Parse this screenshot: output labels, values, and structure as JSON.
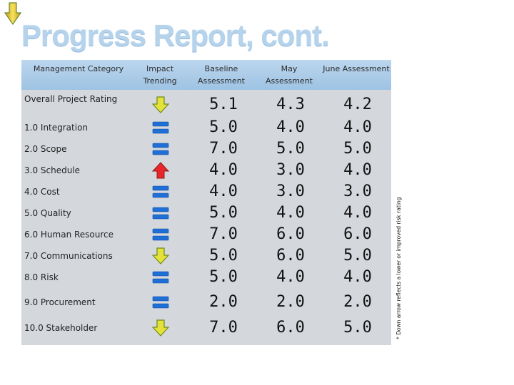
{
  "title": "Progress Report, cont.",
  "headers": {
    "category": "Management Category",
    "trending": "Impact Trending",
    "baseline": "Baseline Assessment",
    "may": "May Assessment",
    "june": "June Assessment"
  },
  "rows": [
    {
      "label": "Overall Project Rating",
      "trend": "down-arrow-icon",
      "baseline": "5.1",
      "may": "4.3",
      "june": "4.2"
    },
    {
      "label": "1.0 Integration",
      "trend": "equal-icon",
      "baseline": "5.0",
      "may": "4.0",
      "june": "4.0"
    },
    {
      "label": "2.0 Scope",
      "trend": "equal-icon",
      "baseline": "7.0",
      "may": "5.0",
      "june": "5.0"
    },
    {
      "label": "3.0 Schedule",
      "trend": "up-arrow-icon",
      "baseline": "4.0",
      "may": "3.0",
      "june": "4.0"
    },
    {
      "label": "4.0 Cost",
      "trend": "equal-icon",
      "baseline": "4.0",
      "may": "3.0",
      "june": "3.0"
    },
    {
      "label": "5.0 Quality",
      "trend": "equal-icon",
      "baseline": "5.0",
      "may": "4.0",
      "june": "4.0"
    },
    {
      "label": "6.0 Human Resource",
      "trend": "equal-icon",
      "baseline": "7.0",
      "may": "6.0",
      "june": "6.0"
    },
    {
      "label": "7.0 Communications",
      "trend": "down-arrow-icon",
      "baseline": "5.0",
      "may": "6.0",
      "june": "5.0"
    },
    {
      "label": "8.0 Risk",
      "trend": "equal-icon",
      "baseline": "5.0",
      "may": "4.0",
      "june": "4.0"
    },
    {
      "label": "9.0 Procurement",
      "trend": "equal-icon",
      "baseline": "2.0",
      "may": "2.0",
      "june": "2.0"
    },
    {
      "label": "10.0 Stakeholder",
      "trend": "down-arrow-icon",
      "baseline": "7.0",
      "may": "6.0",
      "june": "5.0"
    }
  ],
  "footnote": "* Down arrow reflects a lower or improved risk rating",
  "colors": {
    "title": "#b6d3ec",
    "header_band": "#aecbe7",
    "table_background": "#d4d8dd",
    "equal_sign": "#1f6fd6",
    "down_arrow": "#e4e23a",
    "up_arrow": "#e8252a"
  }
}
